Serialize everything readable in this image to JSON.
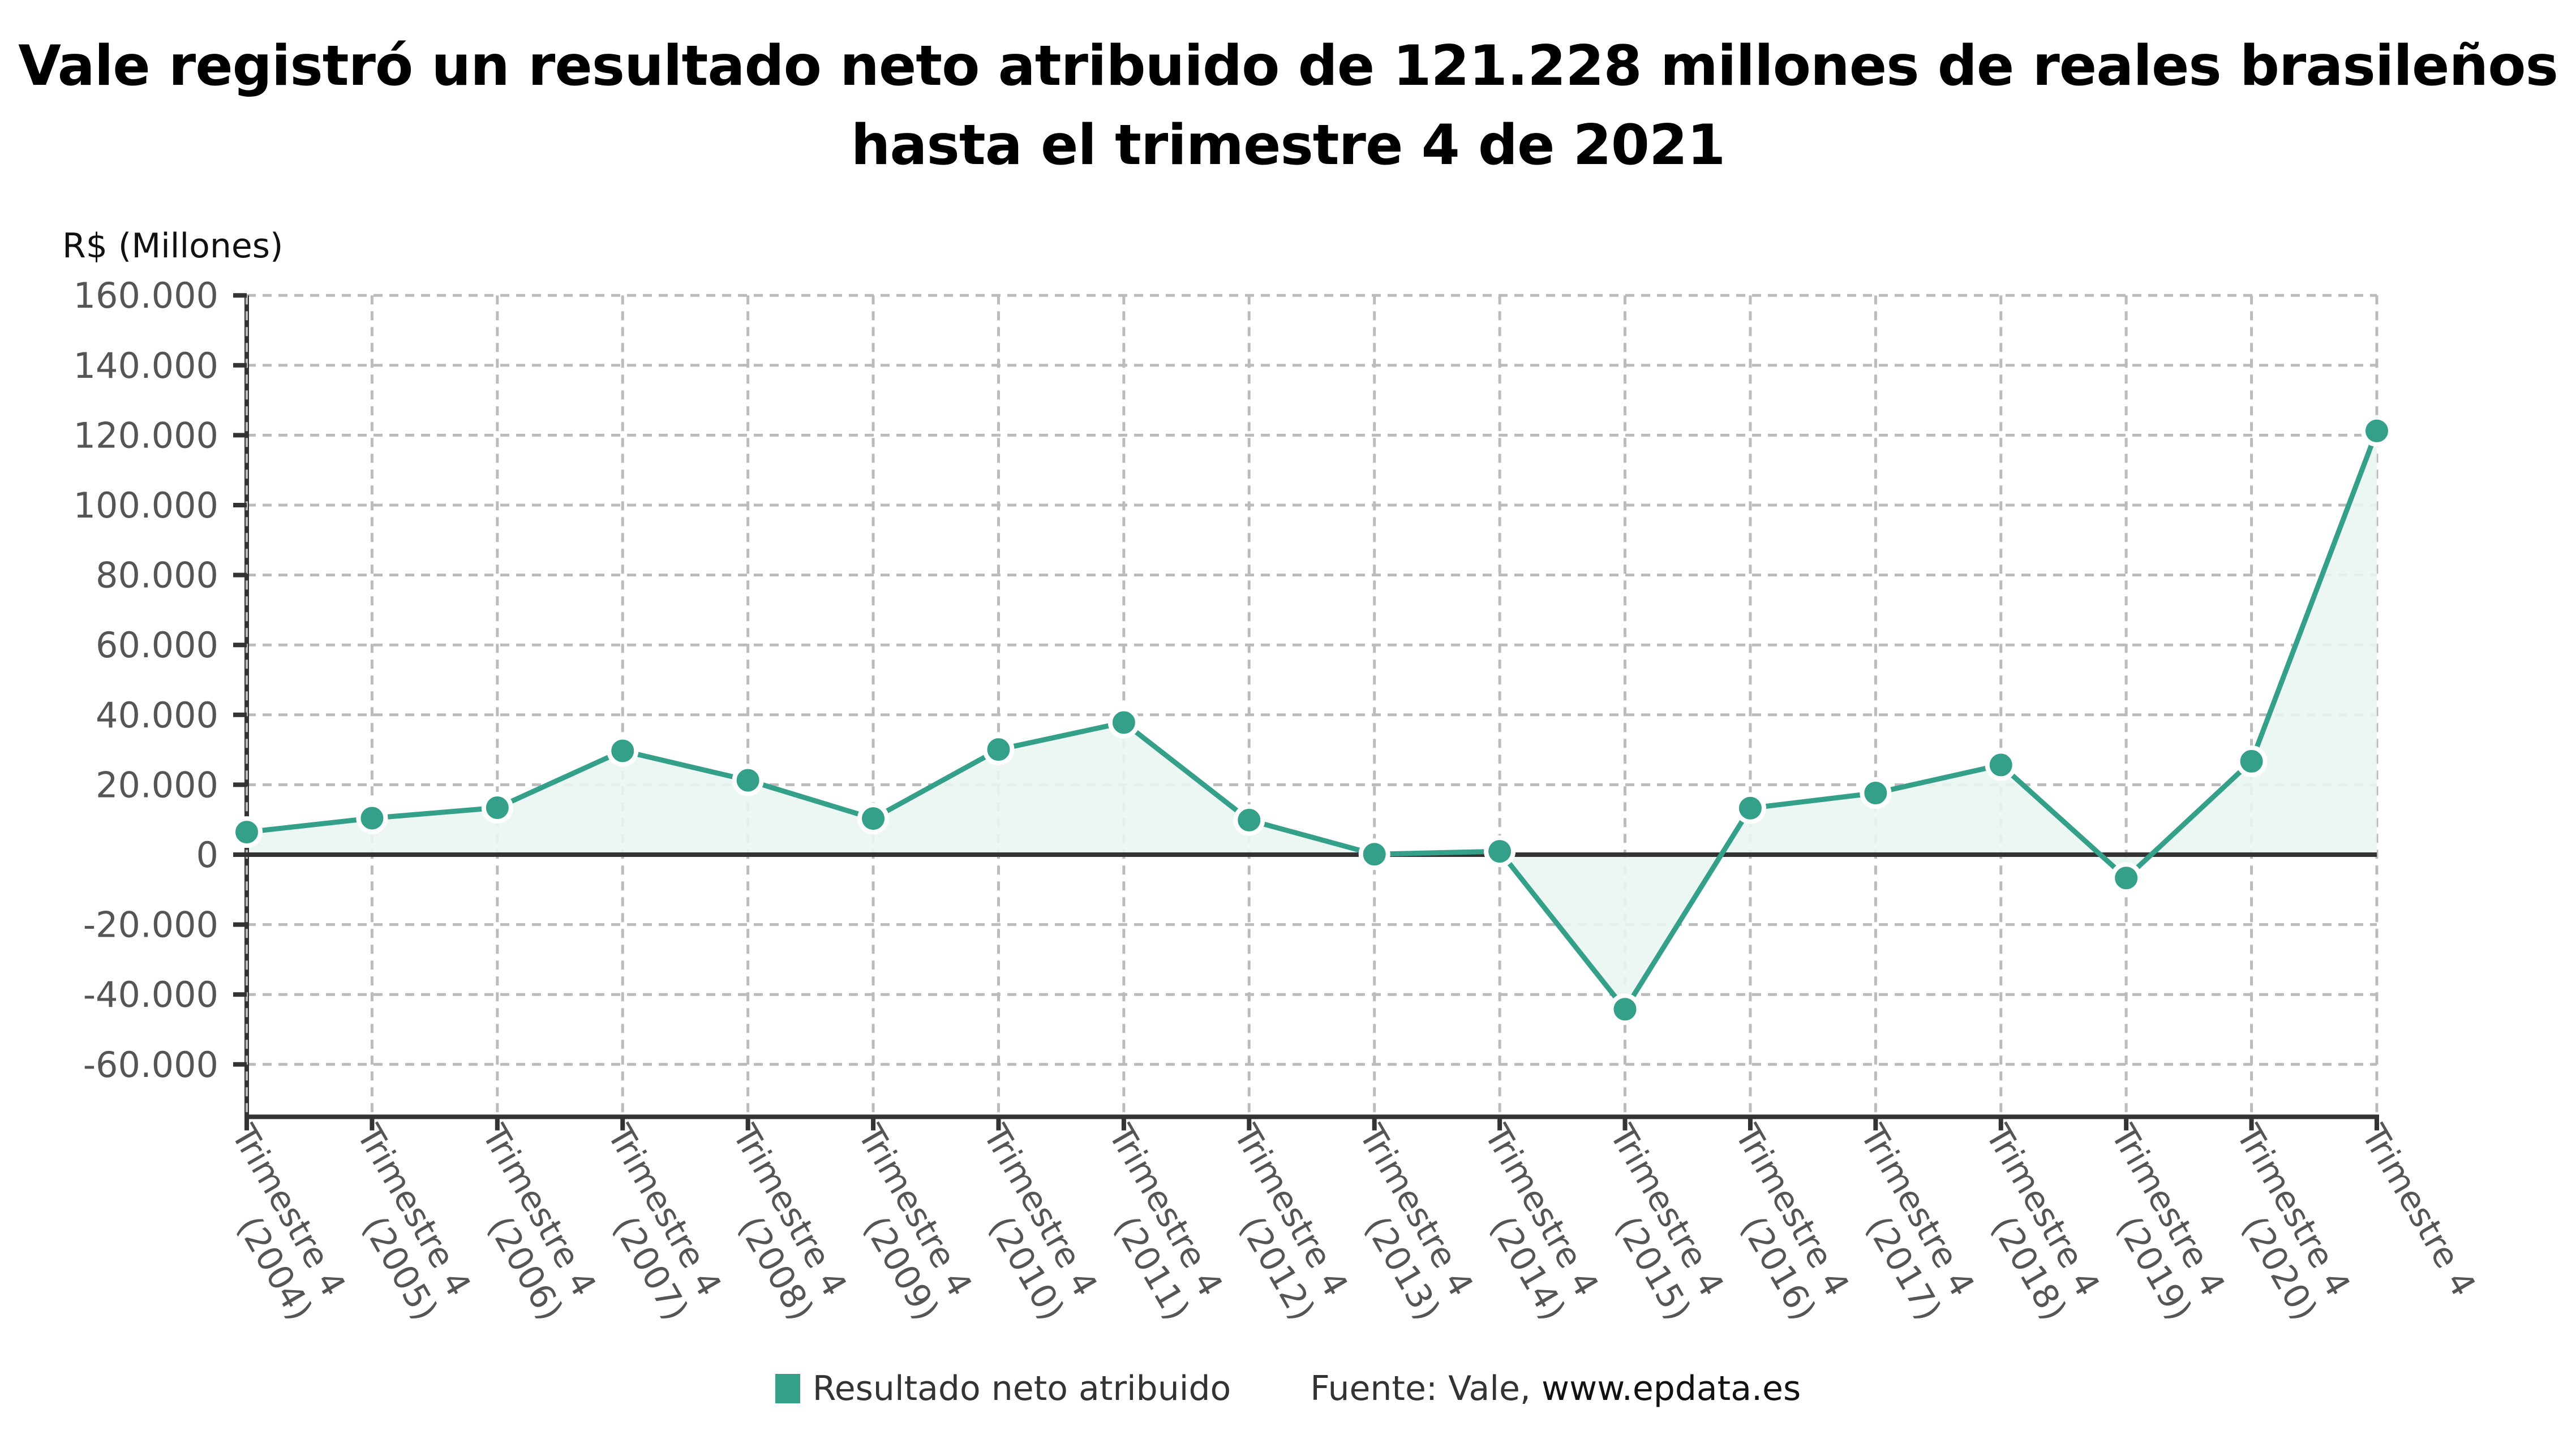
{
  "title": {
    "line1": "Vale registró un resultado neto atribuido de 121.228 millones de reales brasileños",
    "line2": "hasta el trimestre 4 de 2021"
  },
  "colors": {
    "series": "#35a08a",
    "area_fill": "#eaf6f3",
    "axis": "#333333",
    "grid": "#bbbbbb",
    "tick_text": "#555555"
  },
  "legend": {
    "series_label": "Resultado neto atribuido",
    "source_prefix": "Fuente: Vale, ",
    "source_site": "www.epdata.es"
  },
  "chart_data": {
    "type": "area",
    "title": "Vale registró un resultado neto atribuido de 121.228 millones de reales brasileños hasta el trimestre 4 de 2021",
    "ylabel": "R$ (Millones)",
    "xlabel": "",
    "ylim": [
      -75000,
      160000
    ],
    "yticks": [
      160000,
      140000,
      120000,
      100000,
      80000,
      60000,
      40000,
      20000,
      0,
      -20000,
      -40000,
      -60000
    ],
    "ytick_labels": [
      "160.000",
      "140.000",
      "120.000",
      "100.000",
      "80.000",
      "60.000",
      "40.000",
      "20.000",
      "0",
      "-20.000",
      "-40.000",
      "-60.000"
    ],
    "grid": true,
    "legend_position": "bottom",
    "categories": [
      [
        "Trimestre 4",
        "(2004)"
      ],
      [
        "Trimestre 4",
        "(2005)"
      ],
      [
        "Trimestre 4",
        "(2006)"
      ],
      [
        "Trimestre 4",
        "(2007)"
      ],
      [
        "Trimestre 4",
        "(2008)"
      ],
      [
        "Trimestre 4",
        "(2009)"
      ],
      [
        "Trimestre 4",
        "(2010)"
      ],
      [
        "Trimestre 4",
        "(2011)"
      ],
      [
        "Trimestre 4",
        "(2012)"
      ],
      [
        "Trimestre 4",
        "(2013)"
      ],
      [
        "Trimestre 4",
        "(2014)"
      ],
      [
        "Trimestre 4",
        "(2015)"
      ],
      [
        "Trimestre 4",
        "(2016)"
      ],
      [
        "Trimestre 4",
        "(2017)"
      ],
      [
        "Trimestre 4",
        "(2018)"
      ],
      [
        "Trimestre 4",
        "(2019)"
      ],
      [
        "Trimestre 4",
        "(2020)"
      ],
      [
        "Trimestre 4",
        ""
      ]
    ],
    "series": [
      {
        "name": "Resultado neto atribuido",
        "values": [
          6460,
          10440,
          13430,
          29700,
          21280,
          10340,
          30070,
          37810,
          9890,
          120,
          950,
          -44210,
          13310,
          17630,
          25660,
          -6670,
          26710,
          121228
        ]
      }
    ]
  }
}
